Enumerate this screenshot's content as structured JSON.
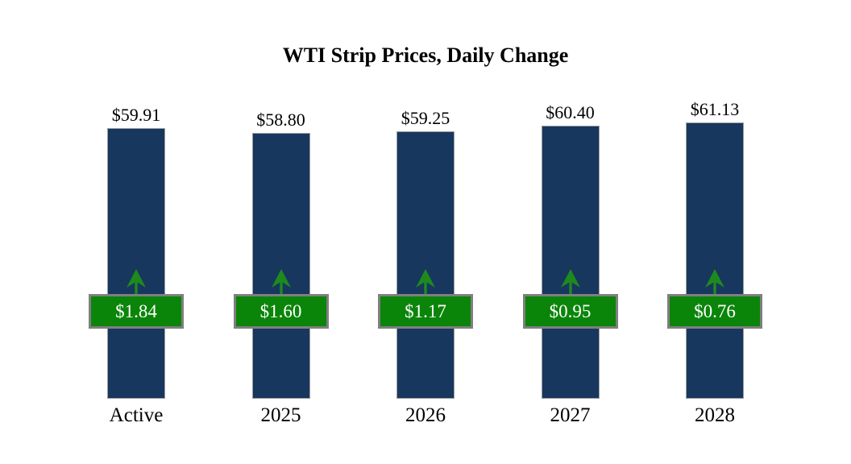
{
  "chart_data": {
    "type": "bar",
    "title": "WTI Strip Prices, Daily Change",
    "categories": [
      "Active",
      "2025",
      "2026",
      "2027",
      "2028"
    ],
    "series": [
      {
        "name": "WTI Strip Price",
        "values": [
          59.91,
          58.8,
          59.25,
          60.4,
          61.13
        ],
        "labels": [
          "$59.91",
          "$58.80",
          "$59.25",
          "$60.40",
          "$61.13"
        ]
      },
      {
        "name": "Daily Change",
        "values": [
          1.84,
          1.6,
          1.17,
          0.95,
          0.76
        ],
        "labels": [
          "$1.84",
          "$1.60",
          "$1.17",
          "$0.95",
          "$0.76"
        ],
        "direction": [
          "up",
          "up",
          "up",
          "up",
          "up"
        ]
      }
    ],
    "xlabel": "",
    "ylabel": "",
    "ylim": [
      0,
      61.13
    ],
    "grid": false,
    "legend": "none",
    "colors": {
      "bar": "#17375E",
      "bar_border": "#9E9E9E",
      "badge": "#0A850A",
      "badge_border": "#7F7F7F",
      "badge_text": "#FFFFFF",
      "arrow": "#1E8A1E",
      "title_text": "#000000",
      "label_text": "#000000",
      "background": "#FFFFFF"
    }
  }
}
